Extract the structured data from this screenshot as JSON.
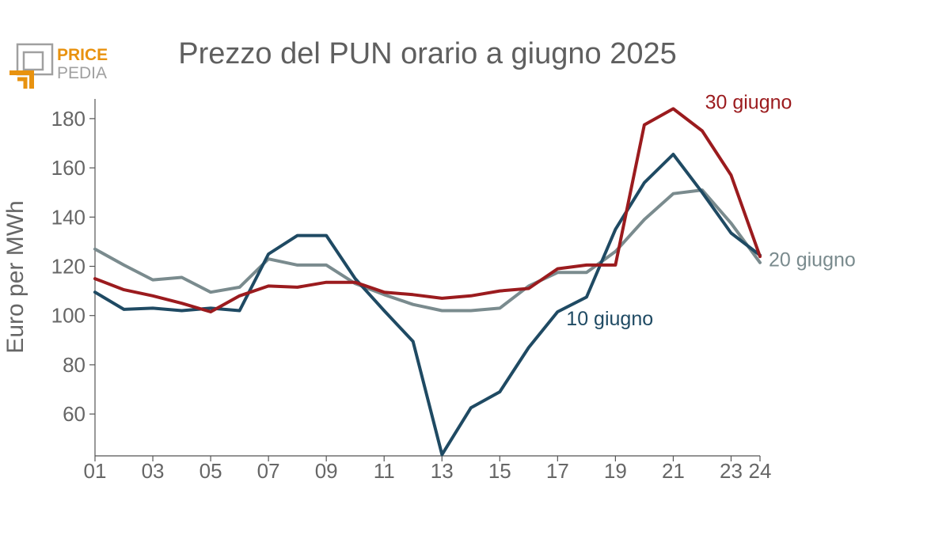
{
  "logo": {
    "line1": "PRICE",
    "line2": "PEDIA",
    "color_orange": "#e8920f",
    "color_gray": "#a0a0a0"
  },
  "chart_data": {
    "type": "line",
    "title": "Prezzo del PUN orario a giugno 2025",
    "xlabel": "",
    "ylabel": "Euro per MWh",
    "x": [
      1,
      2,
      3,
      4,
      5,
      6,
      7,
      8,
      9,
      10,
      11,
      12,
      13,
      14,
      15,
      16,
      17,
      18,
      19,
      20,
      21,
      22,
      23,
      24
    ],
    "x_tick_labels": [
      "01",
      "03",
      "05",
      "07",
      "09",
      "11",
      "13",
      "15",
      "17",
      "19",
      "21",
      "23",
      "24"
    ],
    "x_tick_values": [
      1,
      3,
      5,
      7,
      9,
      11,
      13,
      15,
      17,
      19,
      21,
      23,
      24
    ],
    "y_ticks": [
      60,
      80,
      100,
      120,
      140,
      160,
      180
    ],
    "xlim": [
      1,
      24
    ],
    "ylim": [
      43,
      188
    ],
    "grid": false,
    "legend": "inline labels",
    "series": [
      {
        "name": "10 giugno",
        "color": "#1f4a63",
        "values": [
          109.5,
          102.5,
          103,
          102,
          103,
          102,
          125,
          132.5,
          132.5,
          115,
          102,
          89.5,
          43.5,
          62.5,
          69,
          87,
          101.5,
          107.5,
          135,
          154,
          165.5,
          150,
          133.5,
          124.5
        ]
      },
      {
        "name": "20 giugno",
        "color": "#7a8b8e",
        "values": [
          127,
          120.5,
          114.5,
          115.5,
          109.5,
          111.5,
          123,
          120.5,
          120.5,
          113,
          108.5,
          104.5,
          102,
          102,
          103,
          112,
          117.5,
          117.5,
          126,
          139,
          149.5,
          151,
          137.5,
          121.5
        ]
      },
      {
        "name": "30 giugno",
        "color": "#9b1b1e",
        "values": [
          115,
          110.5,
          108,
          105,
          101.5,
          108,
          112,
          111.5,
          113.5,
          113.5,
          109.5,
          108.5,
          107,
          108,
          110,
          111,
          119,
          120.5,
          120.5,
          177.5,
          184,
          175,
          157,
          124
        ]
      }
    ]
  }
}
